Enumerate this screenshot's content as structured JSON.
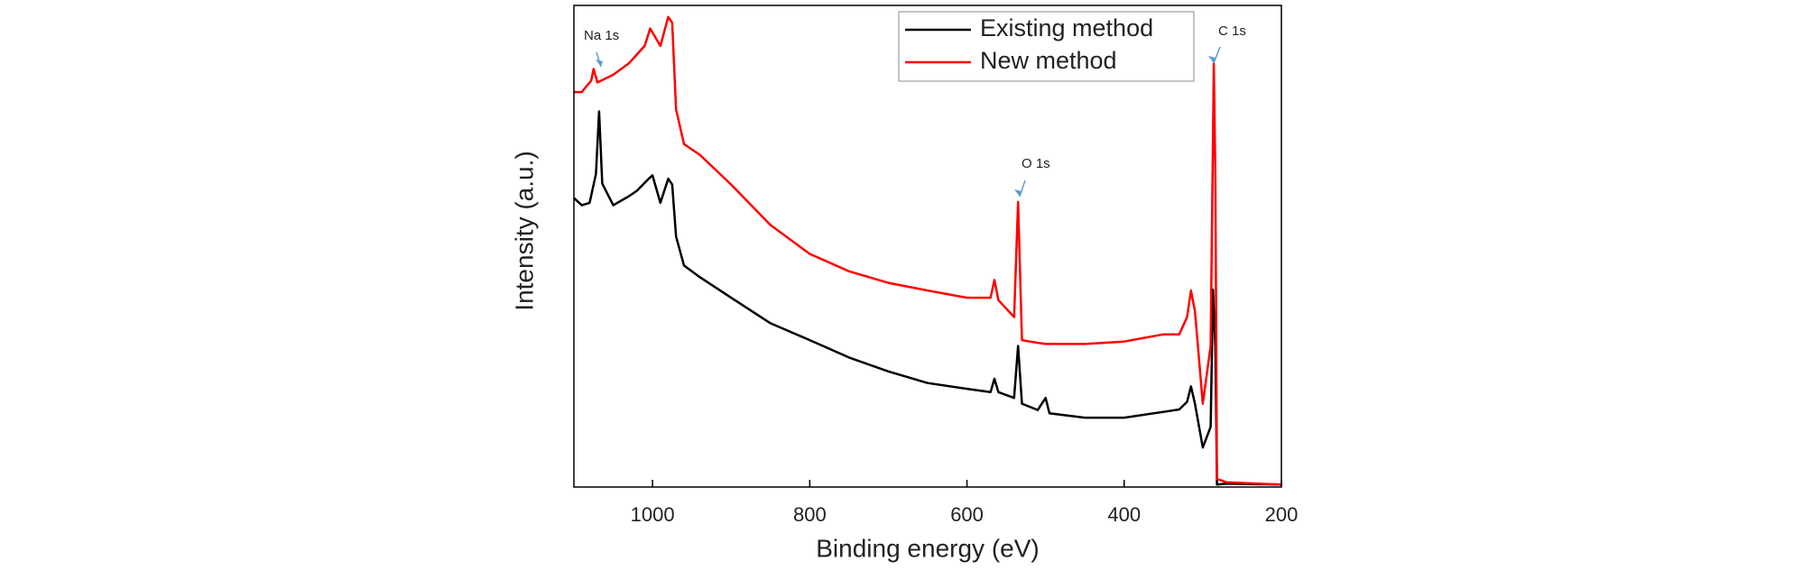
{
  "chart_data": {
    "type": "line",
    "x_label": "Binding energy (eV)",
    "y_label": "Intensity (a.u.)",
    "xlim": [
      1100,
      200
    ],
    "xticks": [
      1000,
      800,
      600,
      400,
      200
    ],
    "ylim": [
      0,
      100
    ],
    "legend": "upper right",
    "annotations": [
      "Na 1s",
      "O 1s",
      "C 1s"
    ],
    "series": [
      {
        "name": "Existing method",
        "color": "#000000",
        "x": [
          1100,
          1090,
          1080,
          1072,
          1068,
          1064,
          1050,
          1030,
          1020,
          1005,
          1000,
          990,
          980,
          975,
          970,
          960,
          940,
          900,
          850,
          800,
          750,
          700,
          650,
          600,
          570,
          565,
          560,
          540,
          535,
          530,
          510,
          500,
          495,
          450,
          400,
          350,
          330,
          320,
          315,
          310,
          300,
          290,
          287,
          284,
          282,
          270,
          200
        ],
        "values": [
          60,
          58.5,
          59,
          65,
          78,
          63,
          58.5,
          60.4,
          61.5,
          64,
          64.7,
          59,
          64,
          62.8,
          52,
          46,
          43.6,
          39.3,
          34,
          30.5,
          26.9,
          24,
          21.6,
          20.4,
          19.7,
          22.5,
          19.7,
          18.5,
          29.3,
          17.3,
          16,
          18.5,
          15.3,
          14.4,
          14.4,
          15.6,
          16.1,
          17.7,
          20.9,
          17.3,
          8.2,
          12.5,
          41,
          29.3,
          0.5,
          0.7,
          0.5
        ]
      },
      {
        "name": "New method",
        "color": "#ff0000",
        "x": [
          1100,
          1090,
          1078,
          1075,
          1070,
          1050,
          1030,
          1010,
          1003,
          990,
          980,
          975,
          970,
          960,
          940,
          900,
          850,
          800,
          750,
          700,
          650,
          600,
          570,
          565,
          560,
          540,
          535,
          530,
          520,
          500,
          450,
          400,
          350,
          330,
          320,
          315,
          310,
          300,
          290,
          286,
          284,
          282,
          270,
          200
        ],
        "values": [
          82,
          82,
          84.4,
          86.8,
          84,
          85.6,
          88,
          91.6,
          95.2,
          91.6,
          97.6,
          96.4,
          78.4,
          71.2,
          69,
          62.8,
          54.4,
          48.4,
          44.8,
          42.4,
          40.8,
          39.3,
          39.3,
          43,
          38.8,
          35.3,
          59.2,
          30.5,
          30.2,
          29.7,
          29.7,
          30.2,
          31.7,
          31.7,
          35.3,
          40.8,
          36.5,
          17.3,
          29.3,
          88,
          65,
          1.7,
          1,
          0.5
        ]
      }
    ]
  }
}
